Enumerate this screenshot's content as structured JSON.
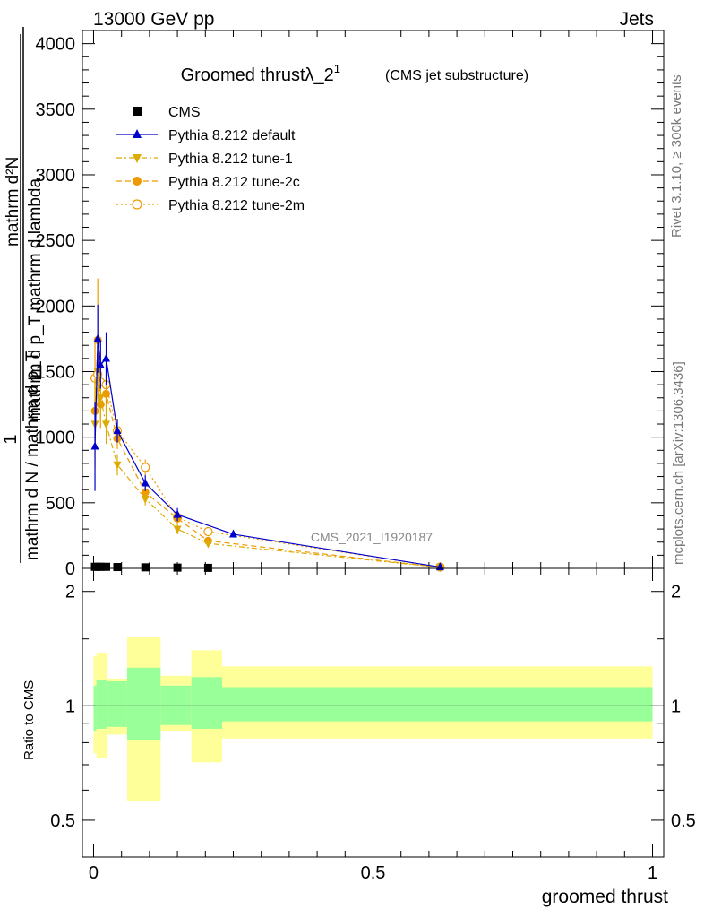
{
  "header": {
    "left": "13000 GeV pp",
    "right": "Jets"
  },
  "side_labels": {
    "rivet": "Rivet 3.1.10, ≥ 300k events",
    "mcplots": "mcplots.cern.ch [arXiv:1306.3436]"
  },
  "watermark": "CMS_2021_I1920187",
  "chart_data": [
    {
      "type": "line",
      "panel": "main",
      "title": "Groomed thrustλ_2",
      "title_sup": "1",
      "subtitle": "(CMS jet substructure)",
      "ylabel": {
        "fraction_top": "1",
        "fraction_bottom": "mathrm d N / mathrm d p_T",
        "numerator": "mathrm d²N",
        "denominator": "mathrm d p_T mathrm d lambda"
      },
      "ylim": [
        0,
        4100
      ],
      "yticks": [
        0,
        500,
        1000,
        1500,
        2000,
        2500,
        3000,
        3500,
        4000
      ],
      "xlim": [
        -0.02,
        1.02
      ],
      "legend_position": "top-left",
      "series": [
        {
          "name": "CMS",
          "color": "#000000",
          "marker": "square",
          "line": "none",
          "x": [
            0.0025,
            0.0075,
            0.0125,
            0.0225,
            0.0425,
            0.0925,
            0.15,
            0.205
          ],
          "y": [
            12,
            12,
            12,
            12,
            10,
            8,
            6,
            4
          ]
        },
        {
          "name": "Pythia 8.212 default",
          "color": "#0000cc",
          "marker": "triangle-up",
          "line": "solid",
          "x": [
            0.0025,
            0.0075,
            0.0125,
            0.0225,
            0.0425,
            0.0925,
            0.15,
            0.25,
            0.62
          ],
          "y": [
            930,
            1750,
            1550,
            1600,
            1050,
            650,
            410,
            260,
            10
          ],
          "err": [
            340,
            260,
            180,
            200,
            90,
            60,
            50,
            25,
            5
          ]
        },
        {
          "name": "Pythia 8.212 tune-1",
          "color": "#ddaa00",
          "marker": "triangle-down",
          "line": "dashdot",
          "x": [
            0.0025,
            0.0075,
            0.0125,
            0.0225,
            0.0425,
            0.0925,
            0.15,
            0.205,
            0.62
          ],
          "y": [
            1100,
            1500,
            1300,
            1100,
            790,
            530,
            300,
            190,
            8
          ],
          "err": [
            330,
            250,
            170,
            150,
            80,
            50,
            40,
            25,
            4
          ]
        },
        {
          "name": "Pythia 8.212 tune-2c",
          "color": "#ee9900",
          "marker": "circle",
          "line": "dashed",
          "x": [
            0.0025,
            0.0075,
            0.0125,
            0.0225,
            0.0425,
            0.0925,
            0.15,
            0.205,
            0.62
          ],
          "y": [
            1200,
            1740,
            1250,
            1330,
            990,
            580,
            380,
            210,
            8
          ],
          "err": [
            250,
            470,
            180,
            140,
            80,
            50,
            40,
            25,
            4
          ]
        },
        {
          "name": "Pythia 8.212 tune-2m",
          "color": "#ee9900",
          "marker": "circle-open",
          "line": "dotted",
          "x": [
            0.0025,
            0.0075,
            0.0125,
            0.0225,
            0.0425,
            0.0925,
            0.15,
            0.205,
            0.62
          ],
          "y": [
            1450,
            1480,
            1420,
            1400,
            1050,
            770,
            390,
            280,
            10
          ],
          "err": [
            280,
            250,
            170,
            150,
            90,
            60,
            40,
            30,
            5
          ]
        }
      ]
    },
    {
      "type": "area",
      "panel": "ratio",
      "ylabel": "Ratio to CMS",
      "xlabel": "groomed thrust",
      "ylim": [
        0.4,
        2.3
      ],
      "yscale": "log",
      "yticks": [
        0.5,
        1,
        2
      ],
      "xticks": [
        0,
        0.5,
        1
      ],
      "xlim": [
        -0.02,
        1.02
      ],
      "reference": 1,
      "bins": [
        {
          "x0": 0.0,
          "x1": 0.005,
          "stat_lo": 0.86,
          "stat_hi": 1.13,
          "tot_lo": 0.75,
          "tot_hi": 1.35
        },
        {
          "x0": 0.005,
          "x1": 0.025,
          "stat_lo": 0.87,
          "stat_hi": 1.17,
          "tot_lo": 0.73,
          "tot_hi": 1.38
        },
        {
          "x0": 0.025,
          "x1": 0.06,
          "stat_lo": 0.88,
          "stat_hi": 1.16,
          "tot_lo": 0.84,
          "tot_hi": 1.18
        },
        {
          "x0": 0.06,
          "x1": 0.12,
          "stat_lo": 0.81,
          "stat_hi": 1.26,
          "tot_lo": 0.56,
          "tot_hi": 1.52
        },
        {
          "x0": 0.12,
          "x1": 0.175,
          "stat_lo": 0.89,
          "stat_hi": 1.13,
          "tot_lo": 0.86,
          "tot_hi": 1.2
        },
        {
          "x0": 0.175,
          "x1": 0.23,
          "stat_lo": 0.87,
          "stat_hi": 1.19,
          "tot_lo": 0.71,
          "tot_hi": 1.4
        },
        {
          "x0": 0.23,
          "x1": 1.0,
          "stat_lo": 0.91,
          "stat_hi": 1.12,
          "tot_lo": 0.82,
          "tot_hi": 1.27
        }
      ]
    }
  ],
  "colors": {
    "band_outer": "#ffff99",
    "band_inner": "#99ff99"
  }
}
